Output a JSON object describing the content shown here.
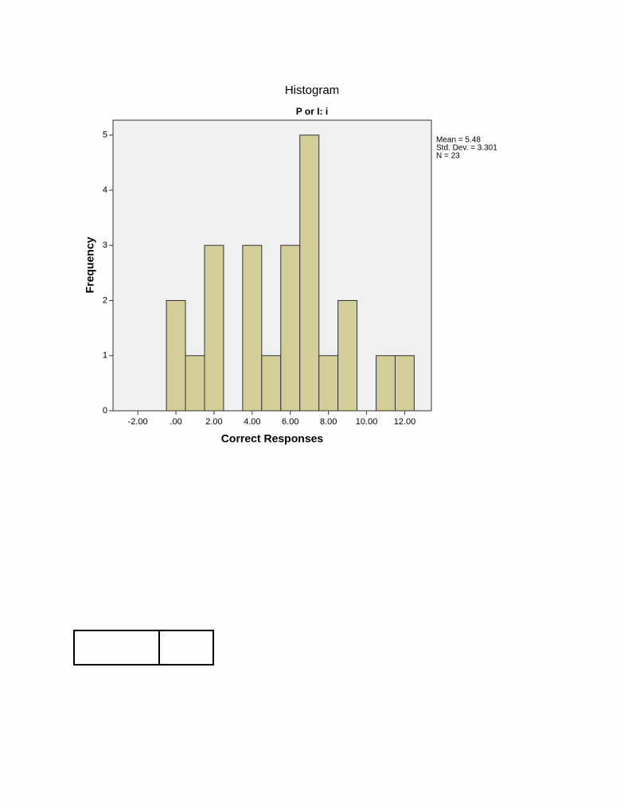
{
  "chart_data": {
    "type": "histogram",
    "title": "Histogram",
    "subtitle": "P or I: i",
    "x_label": "Correct Responses",
    "y_label": "Frequency",
    "bins": [
      -0.5,
      0.5,
      1.5,
      2.5,
      3.5,
      4.5,
      5.5,
      6.5,
      7.5,
      8.5,
      9.5,
      10.5,
      11.5,
      12.5
    ],
    "values": [
      2,
      1,
      3,
      0,
      3,
      1,
      3,
      5,
      1,
      2,
      0,
      1,
      1
    ],
    "color": "#d3ce97",
    "xlim": [
      -3.3,
      13.4
    ],
    "ylim": [
      0,
      5.27
    ],
    "xticks": [
      {
        "value": -2,
        "label": "-2.00"
      },
      {
        "value": 0,
        "label": ".00"
      },
      {
        "value": 2,
        "label": "2.00"
      },
      {
        "value": 4,
        "label": "4.00"
      },
      {
        "value": 6,
        "label": "6.00"
      },
      {
        "value": 8,
        "label": "8.00"
      },
      {
        "value": 10,
        "label": "10.00"
      },
      {
        "value": 12,
        "label": "12.00"
      }
    ],
    "yticks": [
      0,
      1,
      2,
      3,
      4,
      5
    ],
    "stats": [
      "Mean = 5.48",
      "Std. Dev. = 3.301",
      "N = 23"
    ]
  }
}
